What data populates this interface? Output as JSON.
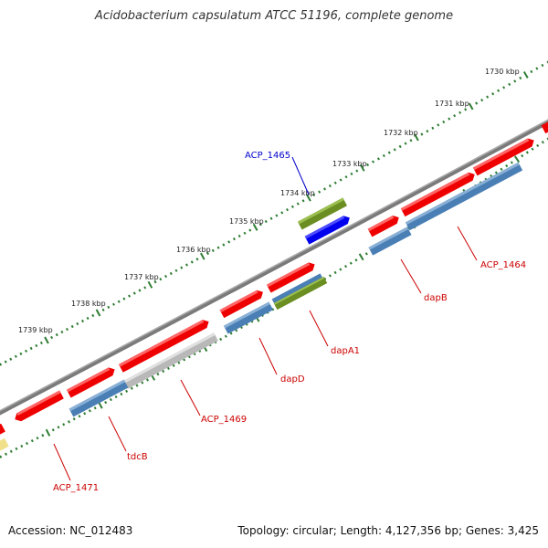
{
  "title": "Acidobacterium capsulatum ATCC 51196, complete genome",
  "footer": {
    "accession": "Accession: NC_012483",
    "summary": "Topology: circular; Length: 4,127,356 bp; Genes: 3,425"
  },
  "colors": {
    "backbone": "#7a7a7a",
    "ticks": "#2e7d32",
    "label_red": "#cc0000",
    "label_blue": "#0000cc",
    "gene_red": "#ee0000",
    "gene_steel": "#4a7fb5",
    "gene_gray": "#b8b8b8",
    "gene_olive": "#6b8e23",
    "gene_blue": "#0000ee",
    "gene_yellow": "#f0e08a"
  },
  "kbp_ticks": [
    "1730 kbp",
    "1731 kbp",
    "1732 kbp",
    "1733 kbp",
    "1734 kbp",
    "1735 kbp",
    "1736 kbp",
    "1737 kbp",
    "1738 kbp",
    "1739 kbp"
  ],
  "gene_labels": [
    {
      "name": "ACP_1465",
      "color": "blue"
    },
    {
      "name": "ACP_1464",
      "color": "red"
    },
    {
      "name": "dapB",
      "color": "red"
    },
    {
      "name": "dapA1",
      "color": "red"
    },
    {
      "name": "dapD",
      "color": "red"
    },
    {
      "name": "ACP_1469",
      "color": "red"
    },
    {
      "name": "tdcB",
      "color": "red"
    },
    {
      "name": "ACP_1471",
      "color": "red"
    }
  ]
}
